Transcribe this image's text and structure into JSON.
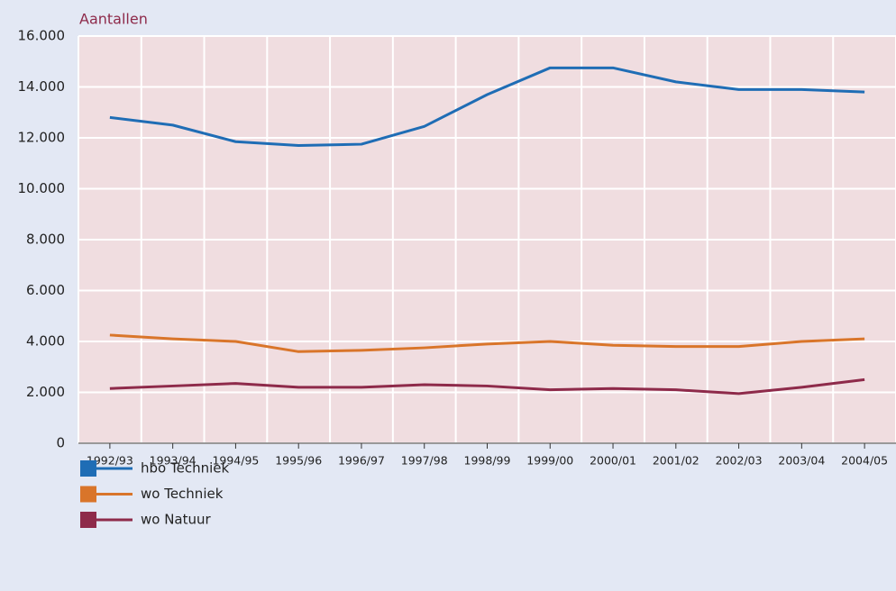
{
  "chart_data": {
    "type": "line",
    "title": "Aantallen",
    "categories": [
      "1992/93",
      "1993/94",
      "1994/95",
      "1995/96",
      "1996/97",
      "1997/98",
      "1998/99",
      "1999/00",
      "2000/01",
      "2001/02",
      "2002/03",
      "2003/04",
      "2004/05"
    ],
    "series": [
      {
        "name": "hbo Techniek",
        "color": "#1f6db5",
        "values": [
          12800,
          12500,
          11850,
          11700,
          11750,
          12450,
          13700,
          14750,
          14750,
          14200,
          13900,
          13900,
          13800
        ]
      },
      {
        "name": "wo Techniek",
        "color": "#d9752a",
        "values": [
          4250,
          4100,
          4000,
          3600,
          3650,
          3750,
          3900,
          4000,
          3850,
          3800,
          3800,
          4000,
          4100
        ]
      },
      {
        "name": "wo Natuur",
        "color": "#8e2a4a",
        "values": [
          2150,
          2250,
          2350,
          2200,
          2200,
          2300,
          2250,
          2100,
          2150,
          2100,
          1950,
          2200,
          2500
        ]
      }
    ],
    "ylim": [
      0,
      16000
    ],
    "yticks": [
      0,
      {
        "value": 2000,
        "label": "2.000"
      },
      {
        "value": 4000,
        "label": "4.000"
      },
      {
        "value": 6000,
        "label": "6.000"
      },
      {
        "value": 8000,
        "label": "8.000"
      },
      {
        "value": 10000,
        "label": "10.000"
      },
      {
        "value": 12000,
        "label": "12.000"
      },
      {
        "value": 14000,
        "label": "14.000"
      },
      {
        "value": 16000,
        "label": "16.000"
      }
    ],
    "grid": true
  }
}
